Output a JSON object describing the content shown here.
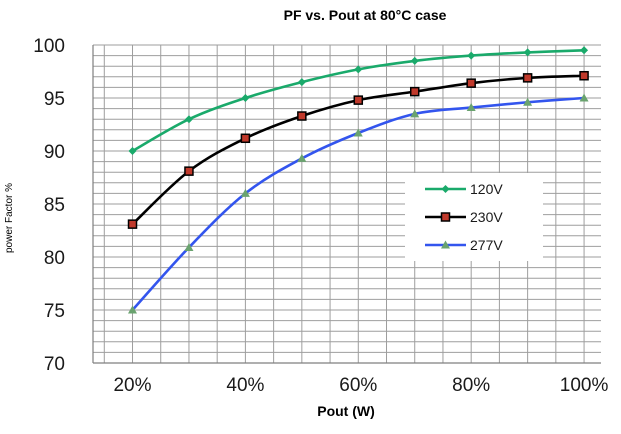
{
  "chart_data": {
    "type": "line",
    "title": "PF vs. Pout at 80°C case",
    "xlabel": "Pout (W)",
    "ylabel": "power Factor %",
    "x": [
      20,
      30,
      40,
      50,
      60,
      70,
      80,
      90,
      100
    ],
    "x_tick_labels": [
      "20%",
      "40%",
      "60%",
      "80%",
      "100%"
    ],
    "y_tick_labels": [
      "70",
      "75",
      "80",
      "85",
      "90",
      "95",
      "100"
    ],
    "ylim": [
      70,
      100
    ],
    "xlim": [
      13,
      103
    ],
    "grid": true,
    "legend_position": "right",
    "series": [
      {
        "name": "120V",
        "color": "#1aaa6b",
        "marker": "diamond",
        "values": [
          90.0,
          93.0,
          95.0,
          96.5,
          97.7,
          98.5,
          99.0,
          99.3,
          99.5
        ]
      },
      {
        "name": "230V",
        "color": "#000000",
        "marker": "square",
        "values": [
          83.1,
          88.1,
          91.2,
          93.3,
          94.8,
          95.6,
          96.4,
          96.9,
          97.1
        ]
      },
      {
        "name": "277V",
        "color": "#3355ee",
        "marker": "triangle",
        "values": [
          75.0,
          80.9,
          86.0,
          89.3,
          91.7,
          93.5,
          94.1,
          94.6,
          95.0
        ]
      }
    ]
  }
}
